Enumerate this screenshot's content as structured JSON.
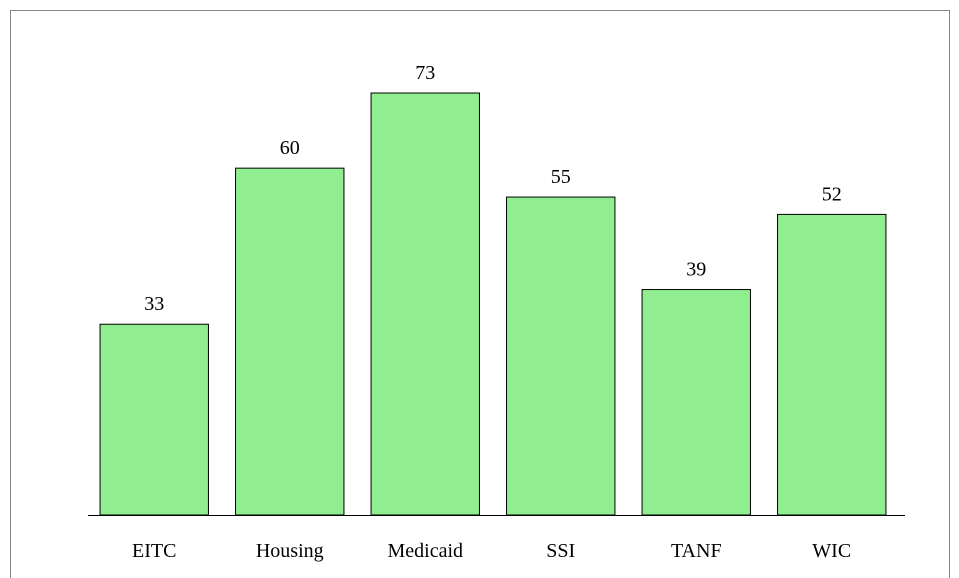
{
  "chart_data": {
    "type": "bar",
    "categories": [
      "EITC",
      "Housing",
      "Medicaid",
      "SSI",
      "TANF",
      "WIC"
    ],
    "values": [
      33,
      60,
      73,
      55,
      39,
      52
    ],
    "color": "#90ee90"
  }
}
